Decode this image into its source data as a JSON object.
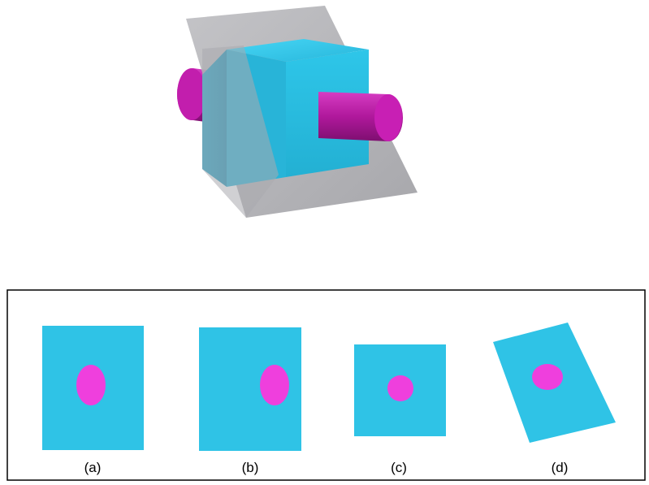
{
  "colors": {
    "cube_front": "#2bbcdc",
    "cube_top": "#35c8ec",
    "cube_side": "#1e9fbf",
    "rod": "#b5199f",
    "rod_end": "#d11fb7",
    "plane": "#a7a7ac",
    "section_fill": "#2fc3e6",
    "hole_fill": "#ef3fdd",
    "frame_border": "#000000"
  },
  "options": [
    {
      "label": "(a)",
      "shape": "rectangle",
      "hole": "ellipse-centered"
    },
    {
      "label": "(b)",
      "shape": "rectangle",
      "hole": "ellipse-right"
    },
    {
      "label": "(c)",
      "shape": "rectangle",
      "hole": "circle-centered"
    },
    {
      "label": "(d)",
      "shape": "tilted-rectangle",
      "hole": "ellipse-centered"
    }
  ]
}
